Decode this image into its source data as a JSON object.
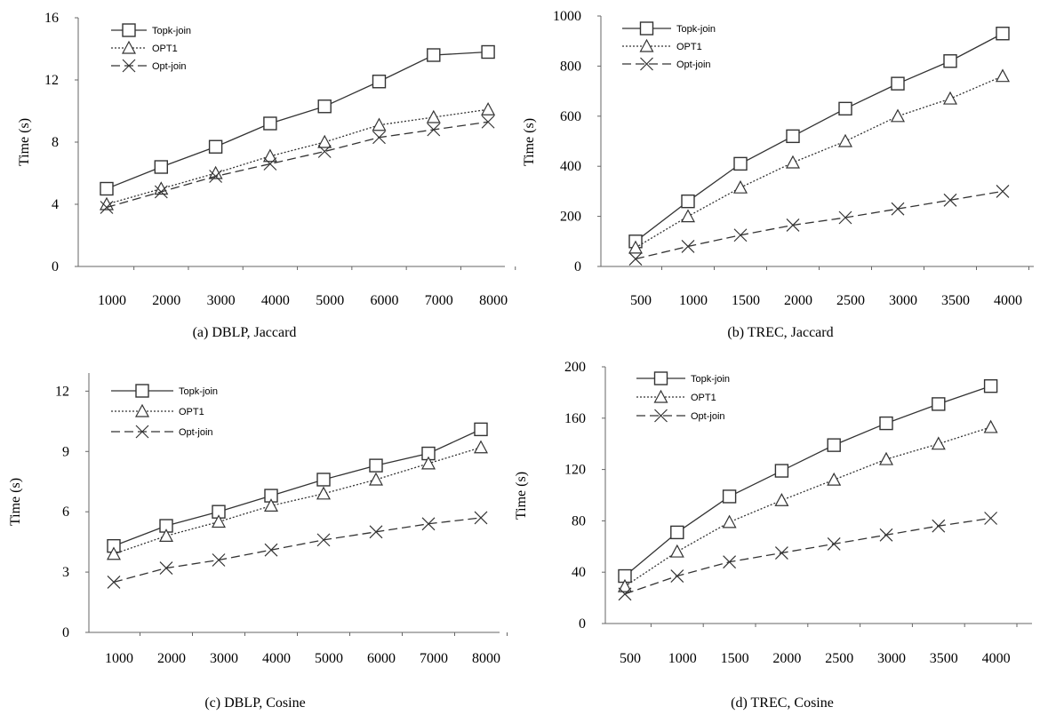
{
  "chart_data": [
    {
      "type": "line",
      "caption": "(a) DBLP, Jaccard",
      "xlabel": "",
      "ylabel": "Time (s)",
      "x": [
        1000,
        2000,
        3000,
        4000,
        5000,
        6000,
        7000,
        8000
      ],
      "xticks": [
        "1000",
        "2000",
        "3000",
        "4000",
        "5000",
        "6000",
        "7000",
        "8000"
      ],
      "yticks": [
        "0",
        "4",
        "8",
        "12",
        "16"
      ],
      "ylim": [
        0,
        16
      ],
      "legend": "top-left",
      "series": [
        {
          "name": "Topk-join",
          "marker": "square",
          "dash": "solid",
          "values": [
            5.0,
            6.4,
            7.7,
            9.2,
            10.3,
            11.9,
            13.6,
            13.8
          ]
        },
        {
          "name": "OPT1",
          "marker": "triangle",
          "dash": "dotted",
          "values": [
            4.0,
            5.0,
            6.0,
            7.1,
            8.0,
            9.1,
            9.6,
            10.1
          ]
        },
        {
          "name": "Opt-join",
          "marker": "x",
          "dash": "dashed",
          "values": [
            3.8,
            4.8,
            5.8,
            6.6,
            7.4,
            8.3,
            8.8,
            9.3
          ]
        }
      ]
    },
    {
      "type": "line",
      "caption": "(b) TREC, Jaccard",
      "xlabel": "",
      "ylabel": "Time (s)",
      "x": [
        500,
        1000,
        1500,
        2000,
        2500,
        3000,
        3500,
        4000
      ],
      "xticks": [
        "500",
        "1000",
        "1500",
        "2000",
        "2500",
        "3000",
        "3500",
        "4000"
      ],
      "yticks": [
        "0",
        "200",
        "400",
        "600",
        "800",
        "1000"
      ],
      "ylim": [
        0,
        1000
      ],
      "legend": "top-left",
      "series": [
        {
          "name": "Topk-join",
          "marker": "square",
          "dash": "solid",
          "values": [
            100,
            260,
            410,
            520,
            630,
            730,
            820,
            930
          ]
        },
        {
          "name": "OPT1",
          "marker": "triangle",
          "dash": "dotted",
          "values": [
            75,
            200,
            315,
            415,
            500,
            600,
            670,
            760
          ]
        },
        {
          "name": "Opt-join",
          "marker": "x",
          "dash": "dashed",
          "values": [
            30,
            80,
            125,
            165,
            195,
            230,
            265,
            300
          ]
        }
      ]
    },
    {
      "type": "line",
      "caption": "(c) DBLP, Cosine",
      "xlabel": "",
      "ylabel": "Time (s)",
      "x": [
        1000,
        2000,
        3000,
        4000,
        5000,
        6000,
        7000,
        8000
      ],
      "xticks": [
        "1000",
        "2000",
        "3000",
        "4000",
        "5000",
        "6000",
        "7000",
        "8000"
      ],
      "yticks": [
        "0",
        "3",
        "6",
        "9",
        "12"
      ],
      "ylim": [
        0,
        12.9
      ],
      "legend": "top-left",
      "series": [
        {
          "name": "Topk-join",
          "marker": "square",
          "dash": "solid",
          "values": [
            4.3,
            5.3,
            6.0,
            6.8,
            7.6,
            8.3,
            8.9,
            10.1
          ]
        },
        {
          "name": "OPT1",
          "marker": "triangle",
          "dash": "dotted",
          "values": [
            3.9,
            4.8,
            5.5,
            6.3,
            6.9,
            7.6,
            8.4,
            9.2
          ]
        },
        {
          "name": "Opt-join",
          "marker": "x",
          "dash": "dashed",
          "values": [
            2.5,
            3.2,
            3.6,
            4.1,
            4.6,
            5.0,
            5.4,
            5.7
          ]
        }
      ]
    },
    {
      "type": "line",
      "caption": "(d) TREC, Cosine",
      "xlabel": "",
      "ylabel": "Time (s)",
      "x": [
        500,
        1000,
        1500,
        2000,
        2500,
        3000,
        3500,
        4000
      ],
      "xticks": [
        "500",
        "1000",
        "1500",
        "2000",
        "2500",
        "3000",
        "3500",
        "4000"
      ],
      "yticks": [
        "0",
        "40",
        "80",
        "120",
        "160",
        "200"
      ],
      "ylim": [
        0,
        200
      ],
      "legend": "top-left",
      "series": [
        {
          "name": "Topk-join",
          "marker": "square",
          "dash": "solid",
          "values": [
            37,
            71,
            99,
            119,
            139,
            156,
            171,
            185
          ]
        },
        {
          "name": "OPT1",
          "marker": "triangle",
          "dash": "dotted",
          "values": [
            29,
            56,
            79,
            96,
            112,
            128,
            140,
            153
          ]
        },
        {
          "name": "Opt-join",
          "marker": "x",
          "dash": "dashed",
          "values": [
            23,
            37,
            48,
            55,
            62,
            69,
            76,
            82
          ]
        }
      ]
    }
  ]
}
